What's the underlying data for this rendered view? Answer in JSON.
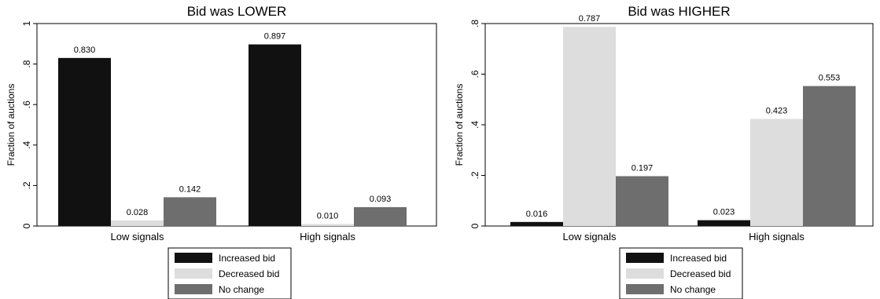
{
  "chart_data": [
    {
      "type": "bar",
      "title": "Bid was LOWER",
      "xlabel": "",
      "ylabel": "Fraction of auctions",
      "ylim": [
        0,
        1
      ],
      "yticks": [
        {
          "value": 0,
          "label": "0"
        },
        {
          "value": 0.2,
          "label": ".2"
        },
        {
          "value": 0.4,
          "label": ".4"
        },
        {
          "value": 0.6,
          "label": ".6"
        },
        {
          "value": 0.8,
          "label": ".8"
        },
        {
          "value": 1,
          "label": "1"
        }
      ],
      "categories": [
        "Low signals",
        "High signals"
      ],
      "series": [
        {
          "name": "Increased bid",
          "values": [
            0.83,
            0.897
          ],
          "labels": [
            "0.830",
            "0.897"
          ],
          "color": "#111111"
        },
        {
          "name": "Decreased bid",
          "values": [
            0.028,
            0.01
          ],
          "labels": [
            "0.028",
            "0.010"
          ],
          "color": "#dddddd"
        },
        {
          "name": "No change",
          "values": [
            0.142,
            0.093
          ],
          "labels": [
            "0.142",
            "0.093"
          ],
          "color": "#6e6e6e"
        }
      ],
      "grid": false,
      "legend": "bottom"
    },
    {
      "type": "bar",
      "title": "Bid was HIGHER",
      "xlabel": "",
      "ylabel": "Fraction of auctions",
      "ylim": [
        0,
        0.8
      ],
      "yticks": [
        {
          "value": 0,
          "label": "0"
        },
        {
          "value": 0.2,
          "label": ".2"
        },
        {
          "value": 0.4,
          "label": ".4"
        },
        {
          "value": 0.6,
          "label": ".6"
        },
        {
          "value": 0.8,
          "label": ".8"
        }
      ],
      "categories": [
        "Low signals",
        "High signals"
      ],
      "series": [
        {
          "name": "Increased bid",
          "values": [
            0.016,
            0.023
          ],
          "labels": [
            "0.016",
            "0.023"
          ],
          "color": "#111111"
        },
        {
          "name": "Decreased bid",
          "values": [
            0.787,
            0.423
          ],
          "labels": [
            "0.787",
            "0.423"
          ],
          "color": "#dddddd"
        },
        {
          "name": "No change",
          "values": [
            0.197,
            0.553
          ],
          "labels": [
            "0.197",
            "0.553"
          ],
          "color": "#6e6e6e"
        }
      ],
      "grid": false,
      "legend": "bottom"
    }
  ]
}
